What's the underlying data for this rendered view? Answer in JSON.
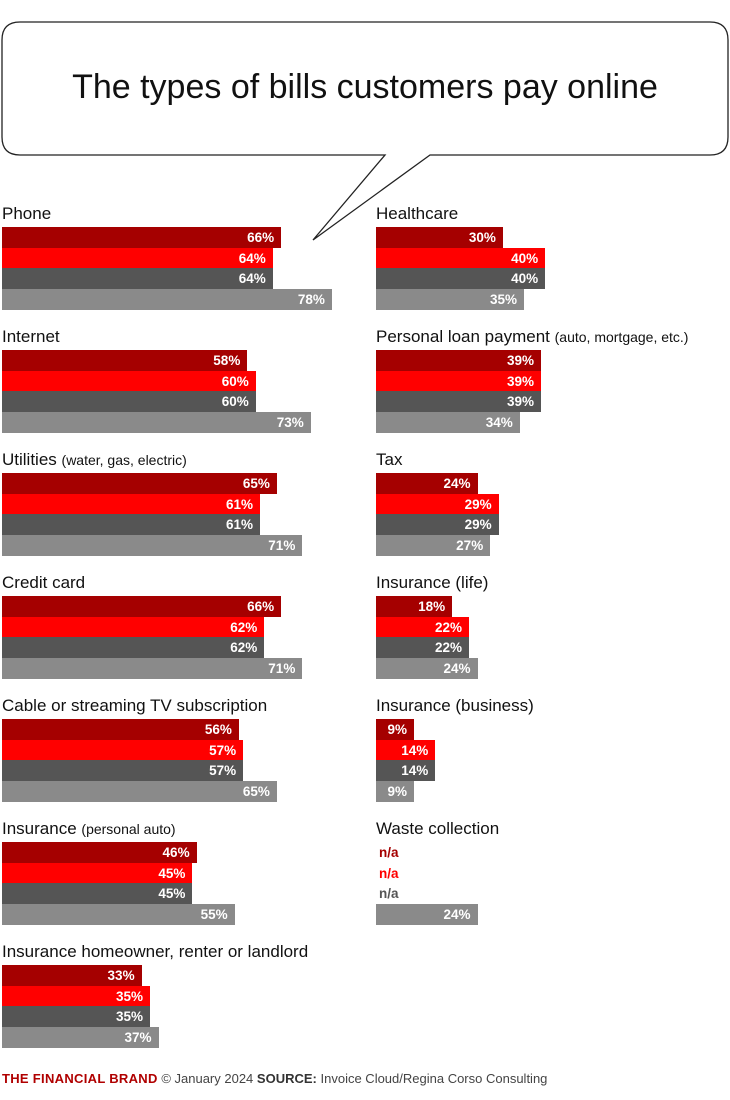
{
  "chart_data": {
    "type": "bar",
    "orientation": "horizontal",
    "title": "The types of bills customers pay online",
    "value_unit": "%",
    "xlim": [
      0,
      100
    ],
    "series_colors": [
      "#a50000",
      "#ff0000",
      "#555555",
      "#8a8a8a"
    ],
    "groups": [
      {
        "label": "Phone",
        "sub": "",
        "values": [
          66,
          64,
          64,
          78
        ],
        "column": "left"
      },
      {
        "label": "Internet",
        "sub": "",
        "values": [
          58,
          60,
          60,
          73
        ],
        "column": "left"
      },
      {
        "label": "Utilities",
        "sub": "(water, gas, electric)",
        "values": [
          65,
          61,
          61,
          71
        ],
        "column": "left"
      },
      {
        "label": "Credit card",
        "sub": "",
        "values": [
          66,
          62,
          62,
          71
        ],
        "column": "left"
      },
      {
        "label": "Cable or streaming TV subscription",
        "sub": "",
        "values": [
          56,
          57,
          57,
          65
        ],
        "column": "left"
      },
      {
        "label": "Insurance",
        "sub": "(personal auto)",
        "values": [
          46,
          45,
          45,
          55
        ],
        "column": "left"
      },
      {
        "label": "Insurance homeowner, renter or landlord",
        "sub": "",
        "values": [
          33,
          35,
          35,
          37
        ],
        "column": "left"
      },
      {
        "label": "Healthcare",
        "sub": "",
        "values": [
          30,
          40,
          40,
          35
        ],
        "column": "right"
      },
      {
        "label": "Personal loan payment",
        "sub": "(auto, mortgage, etc.)",
        "values": [
          39,
          39,
          39,
          34
        ],
        "column": "right"
      },
      {
        "label": "Tax",
        "sub": "",
        "values": [
          24,
          29,
          29,
          27
        ],
        "column": "right"
      },
      {
        "label": "Insurance (life)",
        "sub": "",
        "values": [
          18,
          22,
          22,
          24
        ],
        "column": "right"
      },
      {
        "label": "Insurance (business)",
        "sub": "",
        "values": [
          9,
          14,
          14,
          9
        ],
        "column": "right"
      },
      {
        "label": "Waste collection",
        "sub": "",
        "values": [
          null,
          null,
          null,
          24
        ],
        "column": "right"
      }
    ],
    "na_label": "n/a"
  },
  "footer": {
    "brand": "THE FINANCIAL BRAND",
    "copyright": "© January 2024",
    "source_label": "SOURCE:",
    "source": "Invoice Cloud/Regina Corso Consulting"
  }
}
